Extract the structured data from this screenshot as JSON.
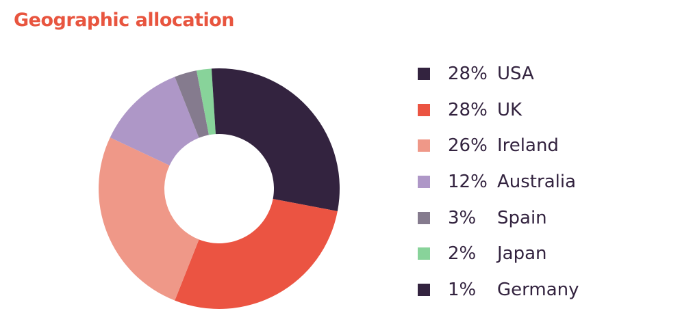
{
  "title": "Geographic allocation",
  "colors": {
    "title": "#e8553f",
    "text": "#33233f"
  },
  "chart_data": {
    "type": "pie",
    "donut": true,
    "title": "Geographic allocation",
    "legend_position": "right",
    "slices": [
      {
        "label": "USA",
        "value": 28,
        "value_label": "28%",
        "color": "#33233f"
      },
      {
        "label": "UK",
        "value": 28,
        "value_label": "28%",
        "color": "#eb5442"
      },
      {
        "label": "Ireland",
        "value": 26,
        "value_label": "26%",
        "color": "#ef9888"
      },
      {
        "label": "Australia",
        "value": 12,
        "value_label": "12%",
        "color": "#ae97c7"
      },
      {
        "label": "Spain",
        "value": 3,
        "value_label": "3%",
        "color": "#857b8e"
      },
      {
        "label": "Japan",
        "value": 2,
        "value_label": "2%",
        "color": "#88d39a"
      },
      {
        "label": "Germany",
        "value": 1,
        "value_label": "1%",
        "color": "#33233f"
      }
    ]
  }
}
